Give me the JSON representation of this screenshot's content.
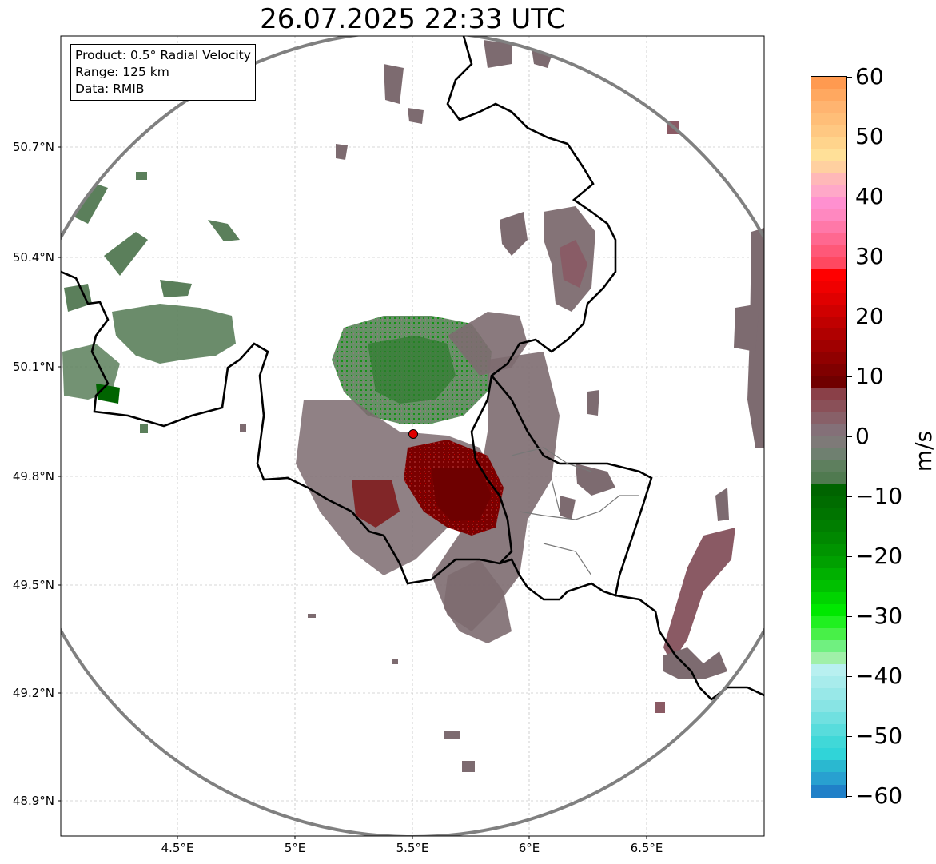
{
  "title": "26.07.2025 22:33 UTC",
  "info": {
    "product": "Product: 0.5° Radial Velocity",
    "range": "Range: 125 km",
    "data": "Data: RMIB"
  },
  "axes": {
    "lat_labels": [
      "50.7°N",
      "50.4°N",
      "50.1°N",
      "49.8°N",
      "49.5°N",
      "49.2°N",
      "48.9°N"
    ],
    "lon_labels": [
      "4.5°E",
      "5°E",
      "5.5°E",
      "6°E",
      "6.5°E"
    ]
  },
  "colorbar": {
    "unit": "m/s",
    "tick_labels": [
      "60",
      "50",
      "40",
      "30",
      "20",
      "10",
      "0",
      "−10",
      "−20",
      "−30",
      "−40",
      "−50",
      "−60"
    ],
    "min": -60,
    "max": 60
  },
  "colors": {
    "approach_strong": "#006400",
    "approach_weak": "#5b7f5b",
    "near_zero": "#7d6b70",
    "recede_weak": "#8a5a64",
    "recede_strong": "#7a0000",
    "range_ring": "#808080",
    "radar_site": "#e00000"
  }
}
